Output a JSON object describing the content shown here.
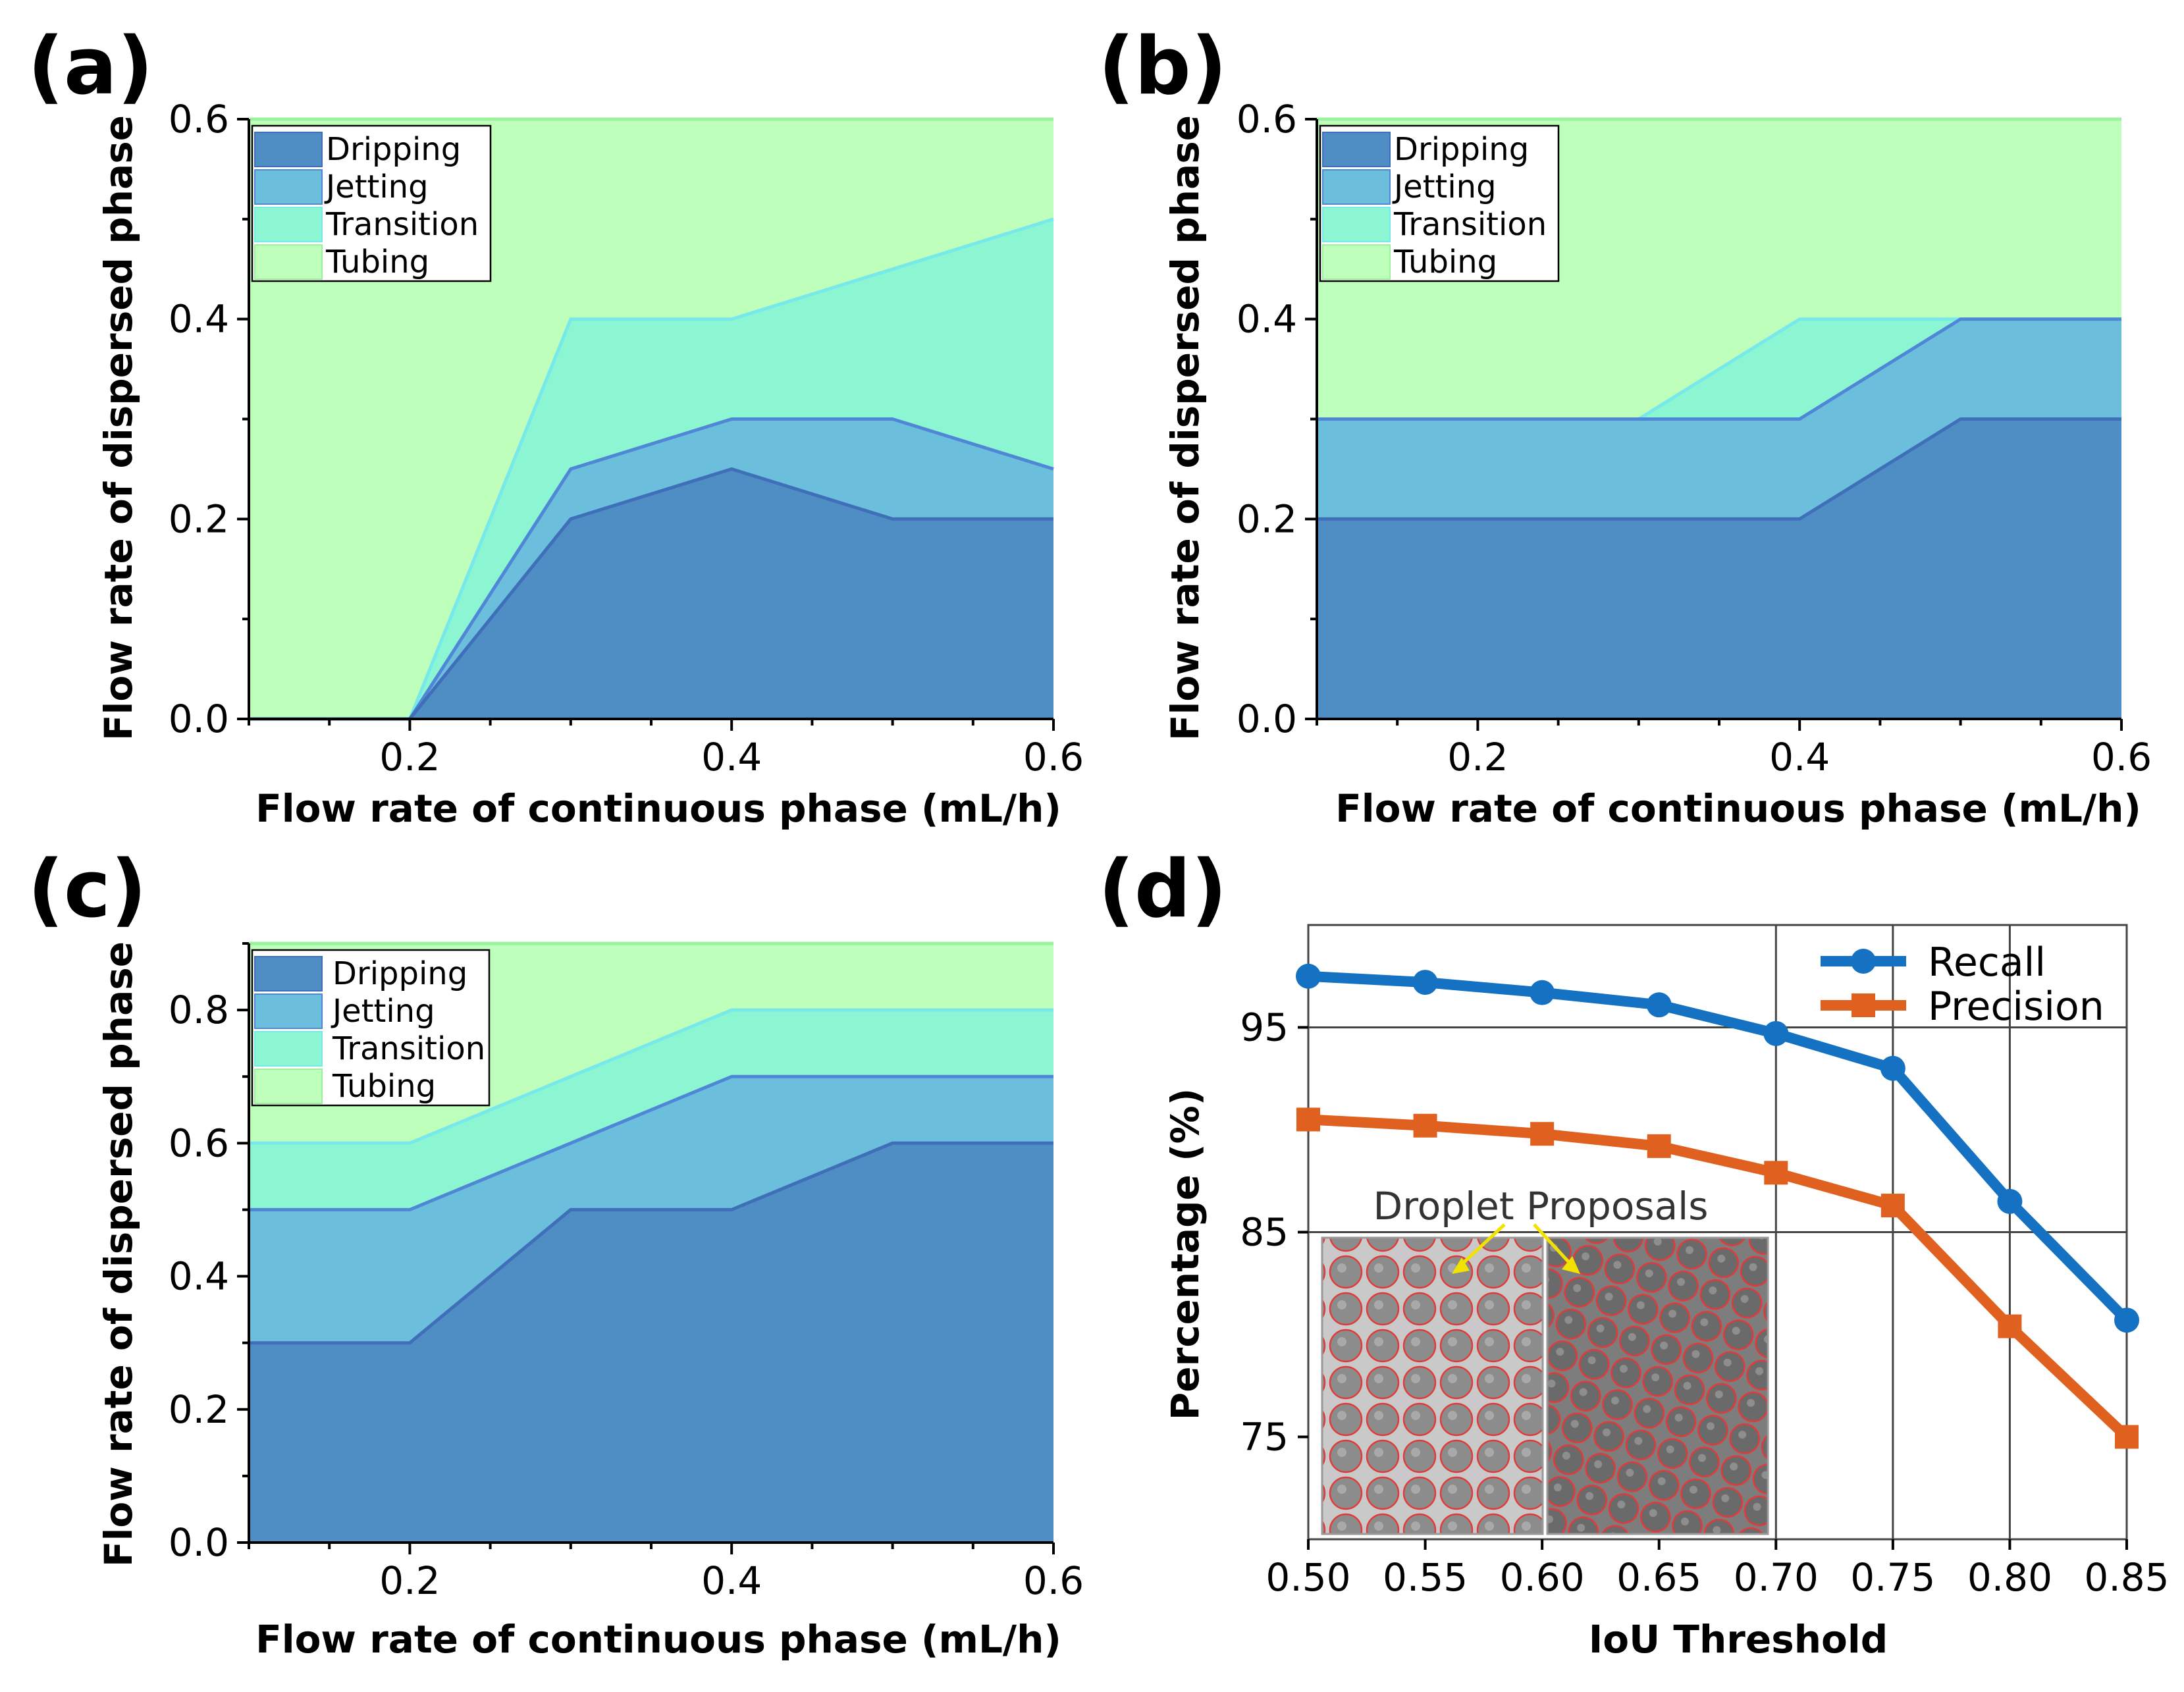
{
  "colors": {
    "dripping": "#4f8ec4",
    "dripping_edge": "#3f6fb8",
    "jetting": "#6bbedc",
    "jetting_edge": "#4f86d6",
    "transition": "#8cf5d2",
    "transition_edge": "#78e9ea",
    "tubing": "#bdffbb",
    "tubing_edge": "#9cf29c",
    "recall": "#1572c2",
    "precision": "#e0611f",
    "arrow": "#f2e200",
    "proposal_circle": "#e03a3a"
  },
  "chart_data": [
    {
      "type": "area",
      "panel": "(a)",
      "xlabel": "Flow rate of continuous phase (mL/h)",
      "ylabel": "Flow rate of dispersed phase",
      "xlim": [
        0.1,
        0.6
      ],
      "ylim": [
        0,
        0.6
      ],
      "xticks": [
        0.2,
        0.4,
        0.6
      ],
      "xtick_labels": [
        "0.2",
        "0.4",
        "0.6"
      ],
      "yticks": [
        0.0,
        0.2,
        0.4,
        0.6
      ],
      "ytick_labels": [
        "0.0",
        "0.2",
        "0.4",
        "0.6"
      ],
      "legend": [
        "Dripping",
        "Jetting",
        "Transition",
        "Tubing"
      ],
      "x": [
        0.1,
        0.2,
        0.3,
        0.4,
        0.5,
        0.6
      ],
      "series": [
        {
          "name": "Dripping",
          "values": [
            0,
            0,
            0.2,
            0.25,
            0.2,
            0.2
          ]
        },
        {
          "name": "Jetting",
          "values": [
            0,
            0,
            0.25,
            0.3,
            0.3,
            0.25
          ]
        },
        {
          "name": "Transition",
          "values": [
            0,
            0,
            0.4,
            0.4,
            0.45,
            0.5
          ]
        },
        {
          "name": "Tubing",
          "values": [
            0.6,
            0.6,
            0.6,
            0.6,
            0.6,
            0.6
          ]
        }
      ]
    },
    {
      "type": "area",
      "panel": "(b)",
      "xlabel": "Flow rate of continuous phase (mL/h)",
      "ylabel": "Flow rate of dispersed phase",
      "xlim": [
        0.1,
        0.6
      ],
      "ylim": [
        0,
        0.6
      ],
      "xticks": [
        0.2,
        0.4,
        0.6
      ],
      "xtick_labels": [
        "0.2",
        "0.4",
        "0.6"
      ],
      "yticks": [
        0.0,
        0.2,
        0.4,
        0.6
      ],
      "ytick_labels": [
        "0.0",
        "0.2",
        "0.4",
        "0.6"
      ],
      "legend": [
        "Dripping",
        "Jetting",
        "Transition",
        "Tubing"
      ],
      "x": [
        0.1,
        0.2,
        0.3,
        0.4,
        0.5,
        0.6
      ],
      "series": [
        {
          "name": "Dripping",
          "values": [
            0.2,
            0.2,
            0.2,
            0.2,
            0.3,
            0.3
          ]
        },
        {
          "name": "Jetting",
          "values": [
            0.3,
            0.3,
            0.3,
            0.3,
            0.4,
            0.4
          ]
        },
        {
          "name": "Transition",
          "values": [
            0.3,
            0.3,
            0.3,
            0.4,
            0.4,
            0.4
          ]
        },
        {
          "name": "Tubing",
          "values": [
            0.6,
            0.6,
            0.6,
            0.6,
            0.6,
            0.6
          ]
        }
      ]
    },
    {
      "type": "area",
      "panel": "(c)",
      "xlabel": "Flow rate of continuous phase (mL/h)",
      "ylabel": "Flow rate of dispersed phase",
      "xlim": [
        0.1,
        0.6
      ],
      "ylim": [
        0,
        0.9
      ],
      "xticks": [
        0.2,
        0.4,
        0.6
      ],
      "xtick_labels": [
        "0.2",
        "0.4",
        "0.6"
      ],
      "yticks": [
        0.0,
        0.2,
        0.4,
        0.6,
        0.8
      ],
      "ytick_labels": [
        "0.0",
        "0.2",
        "0.4",
        "0.6",
        "0.8"
      ],
      "legend": [
        "Dripping",
        "Jetting",
        "Transition",
        "Tubing"
      ],
      "x": [
        0.1,
        0.2,
        0.3,
        0.4,
        0.5,
        0.6
      ],
      "series": [
        {
          "name": "Dripping",
          "values": [
            0.3,
            0.3,
            0.5,
            0.5,
            0.6,
            0.6
          ]
        },
        {
          "name": "Jetting",
          "values": [
            0.5,
            0.5,
            0.6,
            0.7,
            0.7,
            0.7
          ]
        },
        {
          "name": "Transition",
          "values": [
            0.6,
            0.6,
            0.7,
            0.8,
            0.8,
            0.8
          ]
        },
        {
          "name": "Tubing",
          "values": [
            0.9,
            0.9,
            0.9,
            0.9,
            0.9,
            0.9
          ]
        }
      ]
    },
    {
      "type": "line",
      "panel": "(d)",
      "xlabel": "IoU Threshold",
      "ylabel": "Percentage (%)",
      "xlim": [
        0.5,
        0.85
      ],
      "ylim": [
        70,
        100
      ],
      "xticks": [
        0.5,
        0.55,
        0.6,
        0.65,
        0.7,
        0.75,
        0.8,
        0.85
      ],
      "xtick_labels": [
        "0.50",
        "0.55",
        "0.60",
        "0.65",
        "0.70",
        "0.75",
        "0.80",
        "0.85"
      ],
      "yticks": [
        75,
        85,
        95
      ],
      "ytick_labels": [
        "75",
        "85",
        "95"
      ],
      "grid_x": [
        0.7,
        0.75,
        0.8
      ],
      "grid_y": [
        85,
        95
      ],
      "x": [
        0.5,
        0.55,
        0.6,
        0.65,
        0.7,
        0.75,
        0.8,
        0.85
      ],
      "series": [
        {
          "name": "Recall",
          "values": [
            97.5,
            97.2,
            96.7,
            96.1,
            94.7,
            93.0,
            86.5,
            80.7
          ]
        },
        {
          "name": "Precision",
          "values": [
            90.5,
            90.2,
            89.8,
            89.2,
            87.9,
            86.3,
            80.4,
            75.0
          ]
        }
      ],
      "annotation": "Droplet Proposals"
    }
  ]
}
